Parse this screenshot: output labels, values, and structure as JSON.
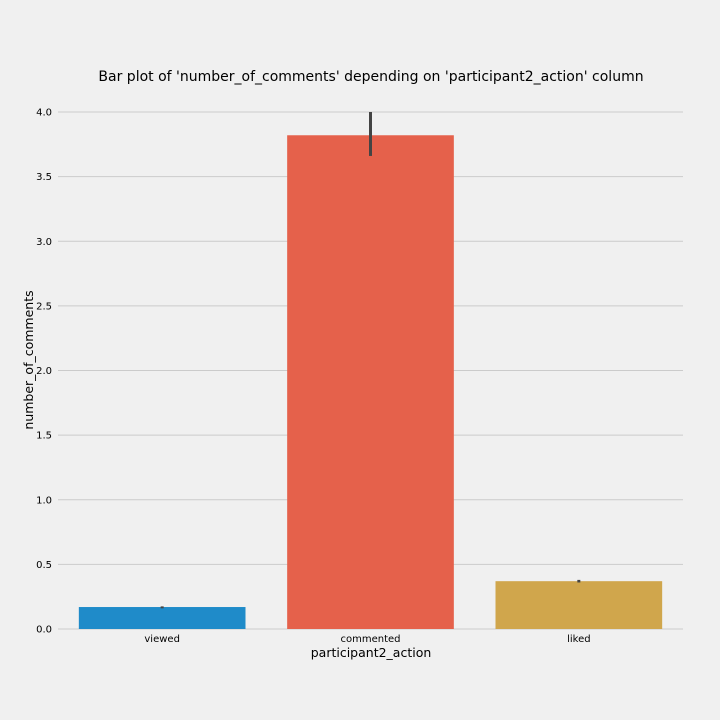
{
  "chart_data": {
    "type": "bar",
    "title": "Bar plot of 'number_of_comments' depending on 'participant2_action' column",
    "xlabel": "participant2_action",
    "ylabel": "number_of_comments",
    "categories": [
      "viewed",
      "commented",
      "liked"
    ],
    "values": [
      0.17,
      3.82,
      0.37
    ],
    "error_low": [
      0.16,
      3.66,
      0.36
    ],
    "error_high": [
      0.175,
      4.0,
      0.38
    ],
    "colors": [
      "#1f8bc9",
      "#e5614b",
      "#d0a64c"
    ],
    "error_color": "#444444",
    "ylim": [
      0,
      4.0
    ],
    "yticks": [
      "0.0",
      "0.5",
      "1.0",
      "1.5",
      "2.0",
      "2.5",
      "3.0",
      "3.5",
      "4.0"
    ],
    "grid": "horizontal",
    "background": "#f0f0f0"
  }
}
